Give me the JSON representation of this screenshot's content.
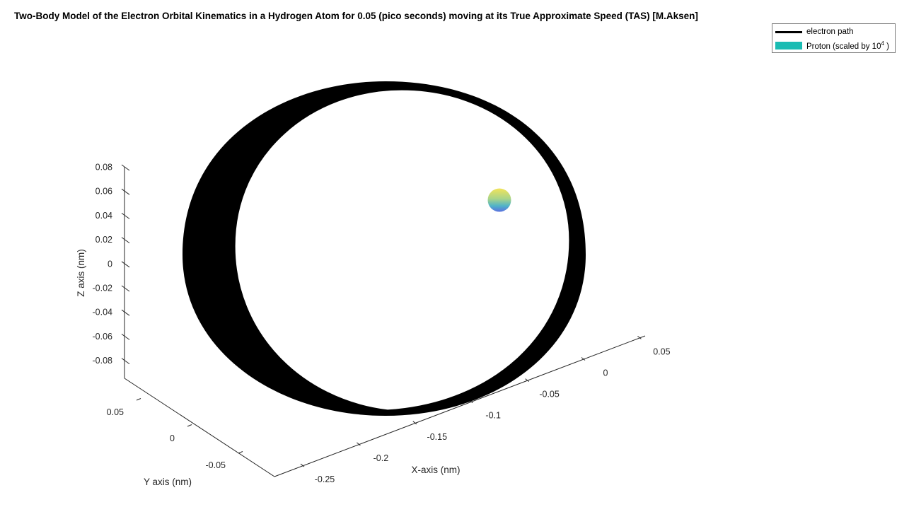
{
  "chart_data": {
    "type": "line",
    "projection": "3d",
    "title": "Two-Body Model of the Electron Orbital Kinematics in a Hydrogen Atom for 0.05 (pico seconds) moving at its True Approximate Speed (TAS) [M.Aksen]",
    "xlabel": "X-axis (nm)",
    "ylabel": "Y axis (nm)",
    "zlabel": "Z axis (nm)",
    "x_ticks": [
      "-0.25",
      "-0.2",
      "-0.15",
      "-0.1",
      "-0.05",
      "0",
      "0.05"
    ],
    "y_ticks": [
      "-0.05",
      "0",
      "0.05"
    ],
    "z_ticks": [
      "0.08",
      "0.06",
      "0.04",
      "0.02",
      "0",
      "-0.02",
      "-0.04",
      "-0.06",
      "-0.08"
    ],
    "series": [
      {
        "name": "electron path",
        "color": "#000000",
        "shape": "dense precessing orbit loops"
      },
      {
        "name": "Proton (scaled by 10",
        "name_superscript": "4",
        "name_suffix": " )",
        "color": "#1abcb3",
        "shape": "sphere"
      }
    ],
    "legend": "top-right",
    "grid": false
  }
}
